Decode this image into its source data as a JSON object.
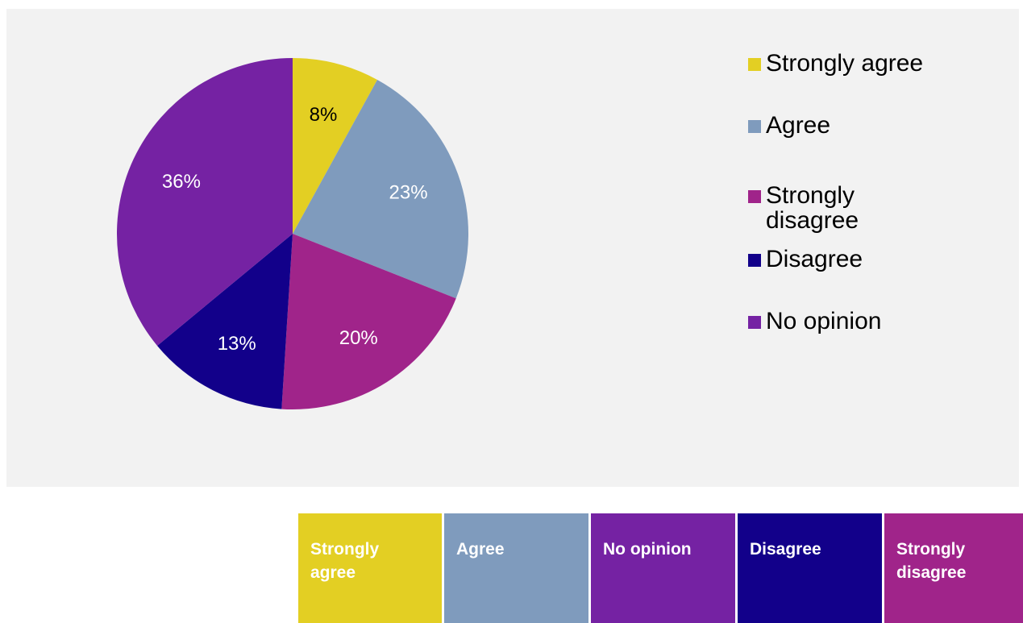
{
  "chart_data": {
    "type": "pie",
    "slices": [
      {
        "label": "Strongly agree",
        "value": 8,
        "value_label": "8%",
        "color": "#e3cf23",
        "label_color": "#000000"
      },
      {
        "label": "Agree",
        "value": 23,
        "value_label": "23%",
        "color": "#7f9bbd",
        "label_color": "#ffffff"
      },
      {
        "label": "Strongly disagree",
        "value": 20,
        "value_label": "20%",
        "color": "#a0248a",
        "label_color": "#ffffff"
      },
      {
        "label": "Disagree",
        "value": 13,
        "value_label": "13%",
        "color": "#12008a",
        "label_color": "#ffffff"
      },
      {
        "label": "No opinion",
        "value": 36,
        "value_label": "36%",
        "color": "#7522a3",
        "label_color": "#ffffff"
      }
    ],
    "legend": [
      {
        "label": "Strongly agree",
        "color": "#e3cf23"
      },
      {
        "label": "Agree",
        "color": "#7f9bbd"
      },
      {
        "label": "Strongly disagree",
        "color": "#a0248a"
      },
      {
        "label": "Disagree",
        "color": "#12008a"
      },
      {
        "label": "No opinion",
        "color": "#7522a3"
      }
    ],
    "legend_position": "right"
  },
  "key_table": [
    {
      "label": "Strongly agree",
      "color": "#e3cf23"
    },
    {
      "label": "Agree",
      "color": "#7f9bbd"
    },
    {
      "label": "No opinion",
      "color": "#7522a3"
    },
    {
      "label": "Disagree",
      "color": "#12008a"
    },
    {
      "label": "Strongly disagree",
      "color": "#a0248a"
    }
  ]
}
